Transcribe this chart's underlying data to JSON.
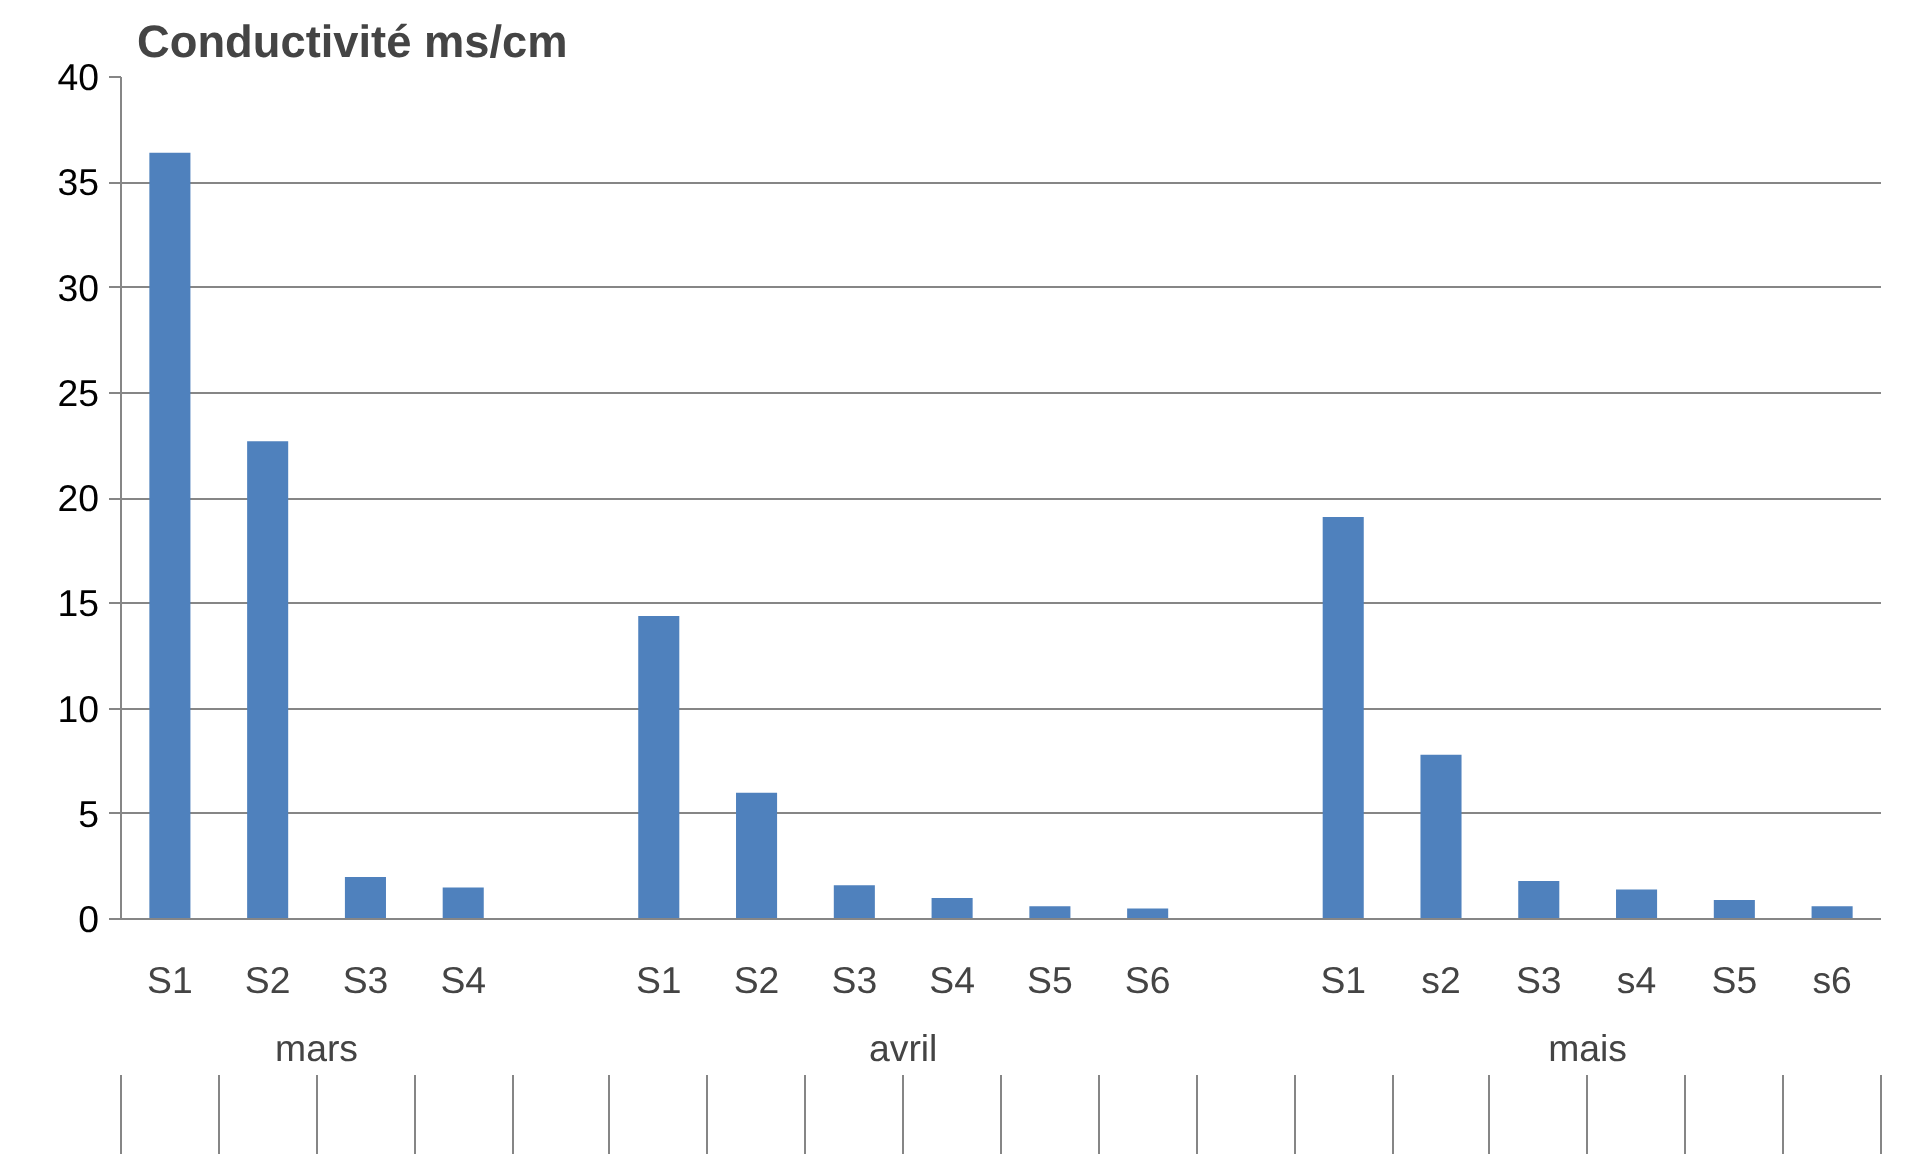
{
  "chart_data": {
    "type": "bar",
    "title": "Conductivité  ms/cm",
    "categories": [
      "S1",
      "S2",
      "S3",
      "S4",
      null,
      "S1",
      "S2",
      "S3",
      "S4",
      "S5",
      "S6",
      null,
      "S1",
      "s2",
      "S3",
      "s4",
      "S5",
      "s6"
    ],
    "values": [
      36.4,
      22.7,
      2.0,
      1.5,
      null,
      14.4,
      6.0,
      1.6,
      1.0,
      0.6,
      0.5,
      null,
      19.1,
      7.8,
      1.8,
      1.4,
      0.9,
      0.6
    ],
    "color": "#4f81bd",
    "annotations": [
      "mars",
      "avril",
      "mais"
    ],
    "ylim": [
      0,
      40
    ],
    "yticks": [
      0,
      5,
      10,
      15,
      20,
      25,
      30,
      35,
      40
    ],
    "grid": "y"
  }
}
